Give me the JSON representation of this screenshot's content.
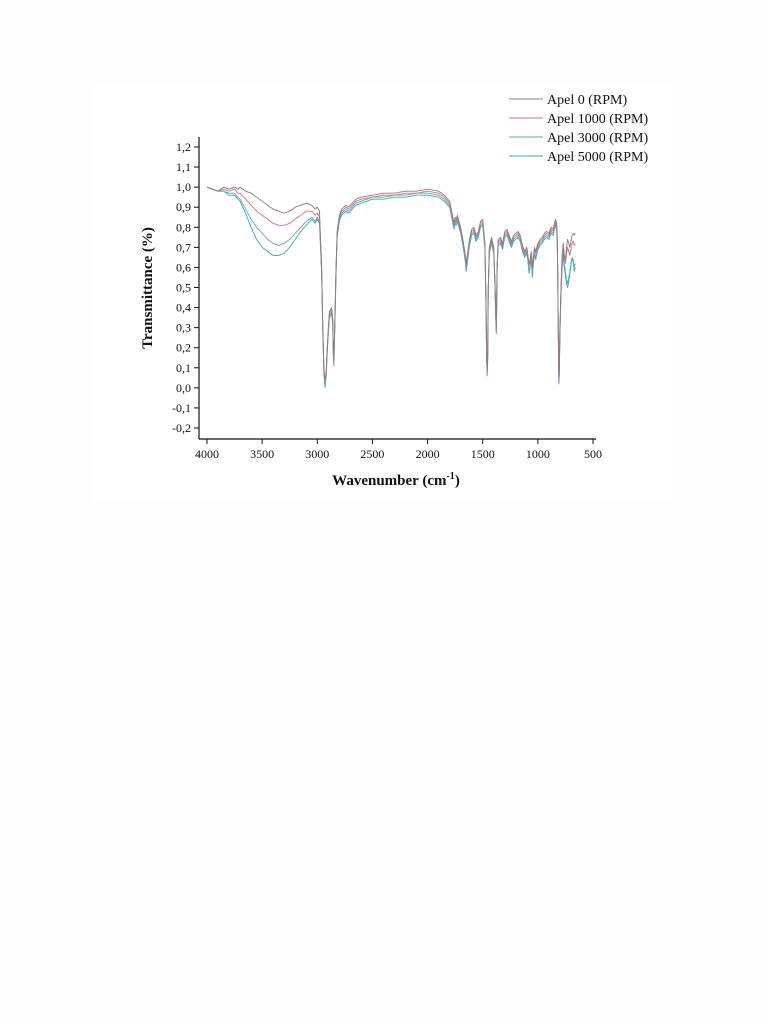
{
  "chart_data": {
    "type": "line",
    "xlabel": "Wavenumber (cm",
    "xlabel_sup": "-1",
    "xlabel_end": ")",
    "ylabel": "Transmittance (%)",
    "xlim": [
      4000,
      500
    ],
    "ylim": [
      -0.2,
      1.2
    ],
    "x_reversed": true,
    "x_ticks": [
      4000,
      3500,
      3000,
      2500,
      2000,
      1500,
      1000,
      500
    ],
    "y_ticks": [
      -0.2,
      -0.1,
      0.0,
      0.1,
      0.2,
      0.3,
      0.4,
      0.5,
      0.6,
      0.7,
      0.8,
      0.9,
      1.0,
      1.1,
      1.2
    ],
    "x_tick_labels": [
      "4000",
      "3500",
      "3000",
      "2500",
      "2000",
      "1500",
      "1000",
      "500"
    ],
    "y_tick_labels": [
      "-0,2",
      "-0,1",
      "0,0",
      "0,1",
      "0,2",
      "0,3",
      "0,4",
      "0,5",
      "0,6",
      "0,7",
      "0,8",
      "0,9",
      "1,0",
      "1,1",
      "1,2"
    ],
    "grid": false,
    "legend_position": "top-right",
    "series": [
      {
        "name": "Apel 0 (RPM)",
        "color": "#8a7c86",
        "x": [
          4000,
          3950,
          3900,
          3850,
          3800,
          3750,
          3720,
          3700,
          3650,
          3600,
          3550,
          3500,
          3450,
          3400,
          3350,
          3300,
          3250,
          3200,
          3150,
          3100,
          3050,
          3020,
          3000,
          2980,
          2960,
          2950,
          2940,
          2930,
          2920,
          2910,
          2900,
          2890,
          2880,
          2870,
          2860,
          2855,
          2850,
          2840,
          2830,
          2820,
          2800,
          2780,
          2760,
          2740,
          2720,
          2700,
          2650,
          2600,
          2500,
          2400,
          2300,
          2200,
          2100,
          2000,
          1900,
          1850,
          1800,
          1760,
          1750,
          1740,
          1730,
          1720,
          1700,
          1680,
          1660,
          1650,
          1640,
          1620,
          1600,
          1580,
          1560,
          1540,
          1520,
          1500,
          1480,
          1470,
          1465,
          1460,
          1455,
          1450,
          1440,
          1420,
          1400,
          1390,
          1380,
          1377,
          1375,
          1370,
          1360,
          1340,
          1320,
          1300,
          1280,
          1260,
          1240,
          1220,
          1200,
          1180,
          1160,
          1140,
          1120,
          1100,
          1090,
          1080,
          1070,
          1060,
          1050,
          1040,
          1030,
          1020,
          1000,
          980,
          960,
          940,
          920,
          900,
          880,
          860,
          850,
          840,
          830,
          825,
          820,
          815,
          810,
          805,
          800,
          790,
          780,
          770,
          760,
          750,
          740,
          730,
          720,
          710,
          700,
          690,
          680,
          670,
          660
        ],
        "y": [
          1.0,
          0.99,
          0.98,
          1.0,
          0.99,
          1.0,
          0.99,
          1.0,
          0.98,
          0.97,
          0.95,
          0.93,
          0.91,
          0.89,
          0.88,
          0.87,
          0.88,
          0.9,
          0.91,
          0.92,
          0.91,
          0.89,
          0.9,
          0.88,
          0.6,
          0.3,
          0.1,
          0.04,
          0.08,
          0.2,
          0.3,
          0.38,
          0.39,
          0.4,
          0.35,
          0.2,
          0.14,
          0.35,
          0.6,
          0.78,
          0.86,
          0.89,
          0.9,
          0.91,
          0.9,
          0.91,
          0.94,
          0.95,
          0.96,
          0.97,
          0.97,
          0.98,
          0.98,
          0.99,
          0.98,
          0.96,
          0.93,
          0.82,
          0.85,
          0.84,
          0.86,
          0.84,
          0.8,
          0.74,
          0.67,
          0.62,
          0.66,
          0.74,
          0.79,
          0.8,
          0.76,
          0.78,
          0.83,
          0.84,
          0.72,
          0.43,
          0.18,
          0.09,
          0.16,
          0.5,
          0.7,
          0.75,
          0.7,
          0.55,
          0.34,
          0.3,
          0.34,
          0.6,
          0.74,
          0.75,
          0.72,
          0.78,
          0.79,
          0.76,
          0.73,
          0.76,
          0.77,
          0.78,
          0.76,
          0.71,
          0.68,
          0.7,
          0.66,
          0.62,
          0.64,
          0.68,
          0.6,
          0.66,
          0.7,
          0.68,
          0.72,
          0.74,
          0.75,
          0.77,
          0.78,
          0.77,
          0.8,
          0.79,
          0.82,
          0.84,
          0.82,
          0.76,
          0.6,
          0.3,
          0.05,
          0.1,
          0.3,
          0.5,
          0.66,
          0.72,
          0.66,
          0.64,
          0.7,
          0.74,
          0.72,
          0.7,
          0.73,
          0.76,
          0.77,
          0.76,
          0.77
        ]
      },
      {
        "name": "Apel 1000 (RPM)",
        "color": "#d77070",
        "x": [
          4000,
          3950,
          3900,
          3850,
          3800,
          3750,
          3720,
          3700,
          3650,
          3600,
          3550,
          3500,
          3450,
          3400,
          3350,
          3300,
          3250,
          3200,
          3150,
          3100,
          3050,
          3020,
          3000,
          2980,
          2960,
          2950,
          2940,
          2930,
          2920,
          2910,
          2900,
          2890,
          2880,
          2870,
          2860,
          2855,
          2850,
          2840,
          2830,
          2820,
          2800,
          2780,
          2760,
          2740,
          2720,
          2700,
          2650,
          2600,
          2500,
          2400,
          2300,
          2200,
          2100,
          2000,
          1900,
          1850,
          1800,
          1760,
          1750,
          1740,
          1730,
          1720,
          1700,
          1680,
          1660,
          1650,
          1640,
          1620,
          1600,
          1580,
          1560,
          1540,
          1520,
          1500,
          1480,
          1470,
          1465,
          1460,
          1455,
          1450,
          1440,
          1420,
          1400,
          1390,
          1380,
          1377,
          1375,
          1370,
          1360,
          1340,
          1320,
          1300,
          1280,
          1260,
          1240,
          1220,
          1200,
          1180,
          1160,
          1140,
          1120,
          1100,
          1090,
          1080,
          1070,
          1060,
          1050,
          1040,
          1030,
          1020,
          1000,
          980,
          960,
          940,
          920,
          900,
          880,
          860,
          850,
          840,
          830,
          825,
          820,
          815,
          810,
          805,
          800,
          790,
          780,
          770,
          760,
          750,
          740,
          730,
          720,
          710,
          700,
          690,
          680,
          670,
          660
        ],
        "y": [
          1.0,
          0.99,
          0.98,
          0.99,
          0.98,
          0.99,
          0.97,
          0.97,
          0.94,
          0.91,
          0.88,
          0.86,
          0.84,
          0.82,
          0.81,
          0.81,
          0.82,
          0.84,
          0.86,
          0.88,
          0.88,
          0.86,
          0.87,
          0.85,
          0.58,
          0.29,
          0.09,
          0.03,
          0.07,
          0.19,
          0.29,
          0.37,
          0.38,
          0.39,
          0.34,
          0.19,
          0.13,
          0.34,
          0.59,
          0.77,
          0.85,
          0.88,
          0.89,
          0.9,
          0.89,
          0.9,
          0.93,
          0.94,
          0.95,
          0.96,
          0.96,
          0.97,
          0.97,
          0.98,
          0.97,
          0.95,
          0.92,
          0.81,
          0.84,
          0.83,
          0.85,
          0.83,
          0.79,
          0.73,
          0.66,
          0.61,
          0.65,
          0.73,
          0.78,
          0.79,
          0.75,
          0.77,
          0.82,
          0.83,
          0.71,
          0.42,
          0.17,
          0.08,
          0.15,
          0.49,
          0.69,
          0.74,
          0.69,
          0.54,
          0.33,
          0.29,
          0.33,
          0.59,
          0.73,
          0.74,
          0.71,
          0.77,
          0.78,
          0.75,
          0.72,
          0.75,
          0.76,
          0.77,
          0.75,
          0.7,
          0.67,
          0.69,
          0.65,
          0.61,
          0.63,
          0.67,
          0.59,
          0.65,
          0.69,
          0.67,
          0.71,
          0.73,
          0.74,
          0.76,
          0.77,
          0.76,
          0.79,
          0.78,
          0.81,
          0.83,
          0.81,
          0.75,
          0.59,
          0.29,
          0.04,
          0.09,
          0.29,
          0.49,
          0.65,
          0.71,
          0.65,
          0.62,
          0.67,
          0.7,
          0.68,
          0.66,
          0.69,
          0.72,
          0.73,
          0.71,
          0.72
        ]
      },
      {
        "name": "Apel 3000 (RPM)",
        "color": "#5aa8c8",
        "x": [
          4000,
          3950,
          3900,
          3850,
          3800,
          3750,
          3720,
          3700,
          3650,
          3600,
          3550,
          3500,
          3450,
          3400,
          3350,
          3300,
          3250,
          3200,
          3150,
          3100,
          3050,
          3020,
          3000,
          2980,
          2960,
          2950,
          2940,
          2930,
          2920,
          2910,
          2900,
          2890,
          2880,
          2870,
          2860,
          2855,
          2850,
          2840,
          2830,
          2820,
          2800,
          2780,
          2760,
          2740,
          2720,
          2700,
          2650,
          2600,
          2500,
          2400,
          2300,
          2200,
          2100,
          2000,
          1900,
          1850,
          1800,
          1760,
          1750,
          1740,
          1730,
          1720,
          1700,
          1680,
          1660,
          1650,
          1640,
          1620,
          1600,
          1580,
          1560,
          1540,
          1520,
          1500,
          1480,
          1470,
          1465,
          1460,
          1455,
          1450,
          1440,
          1420,
          1400,
          1390,
          1380,
          1377,
          1375,
          1370,
          1360,
          1340,
          1320,
          1300,
          1280,
          1260,
          1240,
          1220,
          1200,
          1180,
          1160,
          1140,
          1120,
          1100,
          1090,
          1080,
          1070,
          1060,
          1050,
          1040,
          1030,
          1020,
          1000,
          980,
          960,
          940,
          920,
          900,
          880,
          860,
          850,
          840,
          830,
          825,
          820,
          815,
          810,
          805,
          800,
          790,
          780,
          770,
          760,
          750,
          740,
          730,
          720,
          710,
          700,
          690,
          680,
          670,
          660
        ],
        "y": [
          1.0,
          0.99,
          0.98,
          0.98,
          0.97,
          0.97,
          0.95,
          0.94,
          0.89,
          0.84,
          0.8,
          0.77,
          0.74,
          0.72,
          0.71,
          0.72,
          0.74,
          0.77,
          0.8,
          0.83,
          0.85,
          0.83,
          0.85,
          0.83,
          0.57,
          0.28,
          0.08,
          0.01,
          0.06,
          0.18,
          0.28,
          0.36,
          0.37,
          0.38,
          0.33,
          0.18,
          0.12,
          0.33,
          0.58,
          0.76,
          0.84,
          0.87,
          0.88,
          0.89,
          0.88,
          0.89,
          0.92,
          0.93,
          0.95,
          0.95,
          0.96,
          0.96,
          0.97,
          0.97,
          0.96,
          0.94,
          0.91,
          0.8,
          0.83,
          0.82,
          0.84,
          0.82,
          0.78,
          0.72,
          0.65,
          0.59,
          0.63,
          0.72,
          0.77,
          0.78,
          0.74,
          0.76,
          0.81,
          0.82,
          0.7,
          0.41,
          0.16,
          0.07,
          0.14,
          0.48,
          0.68,
          0.73,
          0.68,
          0.53,
          0.32,
          0.28,
          0.32,
          0.58,
          0.72,
          0.73,
          0.7,
          0.76,
          0.77,
          0.74,
          0.71,
          0.74,
          0.75,
          0.76,
          0.74,
          0.69,
          0.66,
          0.68,
          0.64,
          0.58,
          0.61,
          0.65,
          0.56,
          0.63,
          0.67,
          0.65,
          0.7,
          0.72,
          0.73,
          0.75,
          0.76,
          0.75,
          0.78,
          0.77,
          0.8,
          0.82,
          0.8,
          0.74,
          0.58,
          0.28,
          0.03,
          0.08,
          0.28,
          0.48,
          0.62,
          0.68,
          0.62,
          0.58,
          0.54,
          0.52,
          0.55,
          0.58,
          0.62,
          0.65,
          0.64,
          0.6,
          0.62
        ]
      },
      {
        "name": "Apel 5000 (RPM)",
        "color": "#3aaa9c",
        "x": [
          4000,
          3950,
          3900,
          3850,
          3800,
          3750,
          3720,
          3700,
          3650,
          3600,
          3550,
          3500,
          3450,
          3400,
          3350,
          3300,
          3250,
          3200,
          3150,
          3100,
          3050,
          3020,
          3000,
          2980,
          2960,
          2950,
          2940,
          2930,
          2920,
          2910,
          2900,
          2890,
          2880,
          2870,
          2860,
          2855,
          2850,
          2840,
          2830,
          2820,
          2800,
          2780,
          2760,
          2740,
          2720,
          2700,
          2650,
          2600,
          2500,
          2400,
          2300,
          2200,
          2100,
          2000,
          1900,
          1850,
          1800,
          1760,
          1750,
          1740,
          1730,
          1720,
          1700,
          1680,
          1660,
          1650,
          1640,
          1620,
          1600,
          1580,
          1560,
          1540,
          1520,
          1500,
          1480,
          1470,
          1465,
          1460,
          1455,
          1450,
          1440,
          1420,
          1400,
          1390,
          1380,
          1377,
          1375,
          1370,
          1360,
          1340,
          1320,
          1300,
          1280,
          1260,
          1240,
          1220,
          1200,
          1180,
          1160,
          1140,
          1120,
          1100,
          1090,
          1080,
          1070,
          1060,
          1050,
          1040,
          1030,
          1020,
          1000,
          980,
          960,
          940,
          920,
          900,
          880,
          860,
          850,
          840,
          830,
          825,
          820,
          815,
          810,
          805,
          800,
          790,
          780,
          770,
          760,
          750,
          740,
          730,
          720,
          710,
          700,
          690,
          680,
          670,
          660
        ],
        "y": [
          1.0,
          0.99,
          0.98,
          0.98,
          0.96,
          0.96,
          0.94,
          0.93,
          0.87,
          0.8,
          0.74,
          0.7,
          0.68,
          0.66,
          0.66,
          0.67,
          0.7,
          0.74,
          0.78,
          0.81,
          0.84,
          0.82,
          0.84,
          0.82,
          0.56,
          0.27,
          0.07,
          0.0,
          0.05,
          0.17,
          0.27,
          0.35,
          0.36,
          0.37,
          0.32,
          0.17,
          0.11,
          0.32,
          0.57,
          0.75,
          0.83,
          0.86,
          0.87,
          0.88,
          0.87,
          0.88,
          0.91,
          0.92,
          0.94,
          0.94,
          0.95,
          0.95,
          0.96,
          0.96,
          0.95,
          0.93,
          0.9,
          0.79,
          0.82,
          0.81,
          0.83,
          0.81,
          0.77,
          0.71,
          0.64,
          0.58,
          0.62,
          0.71,
          0.76,
          0.77,
          0.73,
          0.75,
          0.8,
          0.81,
          0.69,
          0.4,
          0.15,
          0.06,
          0.13,
          0.47,
          0.67,
          0.72,
          0.67,
          0.52,
          0.31,
          0.27,
          0.31,
          0.57,
          0.71,
          0.72,
          0.69,
          0.75,
          0.76,
          0.73,
          0.7,
          0.73,
          0.74,
          0.75,
          0.73,
          0.68,
          0.65,
          0.67,
          0.63,
          0.57,
          0.6,
          0.64,
          0.55,
          0.62,
          0.66,
          0.64,
          0.69,
          0.71,
          0.72,
          0.74,
          0.75,
          0.74,
          0.77,
          0.76,
          0.79,
          0.81,
          0.79,
          0.73,
          0.57,
          0.27,
          0.02,
          0.07,
          0.27,
          0.47,
          0.6,
          0.66,
          0.6,
          0.56,
          0.52,
          0.5,
          0.53,
          0.57,
          0.61,
          0.64,
          0.63,
          0.58,
          0.6
        ]
      }
    ]
  }
}
